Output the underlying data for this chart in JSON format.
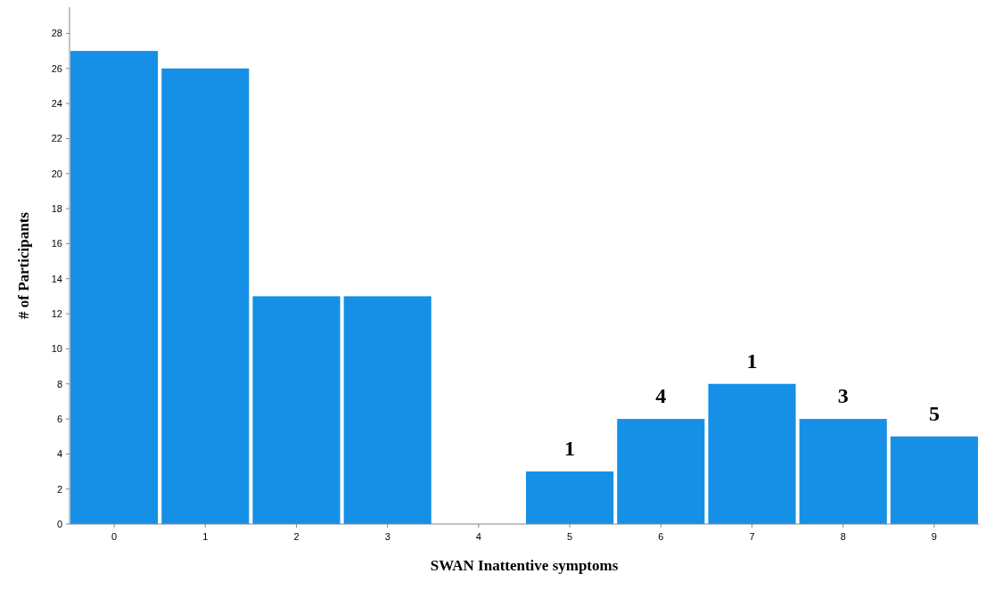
{
  "chart_data": {
    "type": "bar",
    "xlabel": "SWAN Inattentive symptoms",
    "ylabel": "# of Participants",
    "categories": [
      "0",
      "1",
      "2",
      "3",
      "4",
      "5",
      "6",
      "7",
      "8",
      "9"
    ],
    "values": [
      27,
      26,
      13,
      13,
      0,
      3,
      6,
      8,
      6,
      5
    ],
    "color": "#1590e6",
    "ylim": [
      0,
      29.5
    ],
    "yticks": [
      0,
      2,
      4,
      6,
      8,
      10,
      12,
      14,
      16,
      18,
      20,
      22,
      24,
      26,
      28
    ],
    "grid": false,
    "annotations": [
      {
        "text": "1",
        "x": "5",
        "y": 3
      },
      {
        "text": "4",
        "x": "6",
        "y": 6
      },
      {
        "text": "1",
        "x": "7",
        "y": 8
      },
      {
        "text": "3",
        "x": "8",
        "y": 6
      },
      {
        "text": "5",
        "x": "9",
        "y": 5
      }
    ]
  }
}
